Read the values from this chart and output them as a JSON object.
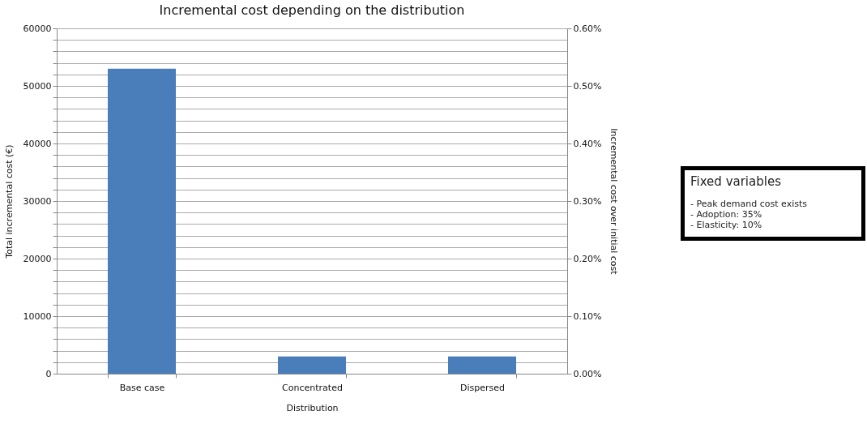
{
  "chart_data": {
    "type": "bar",
    "title": "Incremental cost depending on the distribution",
    "xlabel": "Distribution",
    "ylabel": "Total incremental cost (€)",
    "y2label": "Incremental cost over initial cost",
    "categories": [
      "Base case",
      "Concentrated",
      "Dispersed"
    ],
    "series": [
      {
        "color": "#4a7ebb",
        "values": [
          53000,
          3000,
          3000
        ]
      }
    ],
    "ylim": [
      0,
      60000
    ],
    "yticks": [
      0,
      {
        "value": 2000,
        "label": null
      },
      {
        "value": 4000,
        "label": null
      },
      {
        "value": 6000,
        "label": null
      },
      {
        "value": 8000,
        "label": null
      },
      10000,
      {
        "value": 12000,
        "label": null
      },
      {
        "value": 14000,
        "label": null
      },
      {
        "value": 16000,
        "label": null
      },
      {
        "value": 18000,
        "label": null
      },
      20000,
      {
        "value": 22000,
        "label": null
      },
      {
        "value": 24000,
        "label": null
      },
      {
        "value": 26000,
        "label": null
      },
      {
        "value": 28000,
        "label": null
      },
      30000,
      {
        "value": 32000,
        "label": null
      },
      {
        "value": 34000,
        "label": null
      },
      {
        "value": 36000,
        "label": null
      },
      {
        "value": 38000,
        "label": null
      },
      40000,
      {
        "value": 42000,
        "label": null
      },
      {
        "value": 44000,
        "label": null
      },
      {
        "value": 46000,
        "label": null
      },
      {
        "value": 48000,
        "label": null
      },
      50000,
      {
        "value": 52000,
        "label": null
      },
      {
        "value": 54000,
        "label": null
      },
      {
        "value": 56000,
        "label": null
      },
      {
        "value": 58000,
        "label": null
      },
      60000
    ],
    "y2lim": [
      0,
      0.6
    ],
    "y2ticks": [
      {
        "value": 0,
        "label": "0.00%"
      },
      {
        "value": 0.1,
        "label": "0.10%"
      },
      {
        "value": 0.2,
        "label": "0.20%"
      },
      {
        "value": 0.3,
        "label": "0.30%"
      },
      {
        "value": 0.4,
        "label": "0.40%"
      },
      {
        "value": 0.5,
        "label": "0.50%"
      },
      {
        "value": 0.6,
        "label": "0.60%"
      }
    ],
    "grid": "y",
    "annotations": [
      "Fixed variables",
      "- Peak demand cost exists",
      "- Adoption: 35%",
      "- Elasticity: 10%"
    ]
  }
}
